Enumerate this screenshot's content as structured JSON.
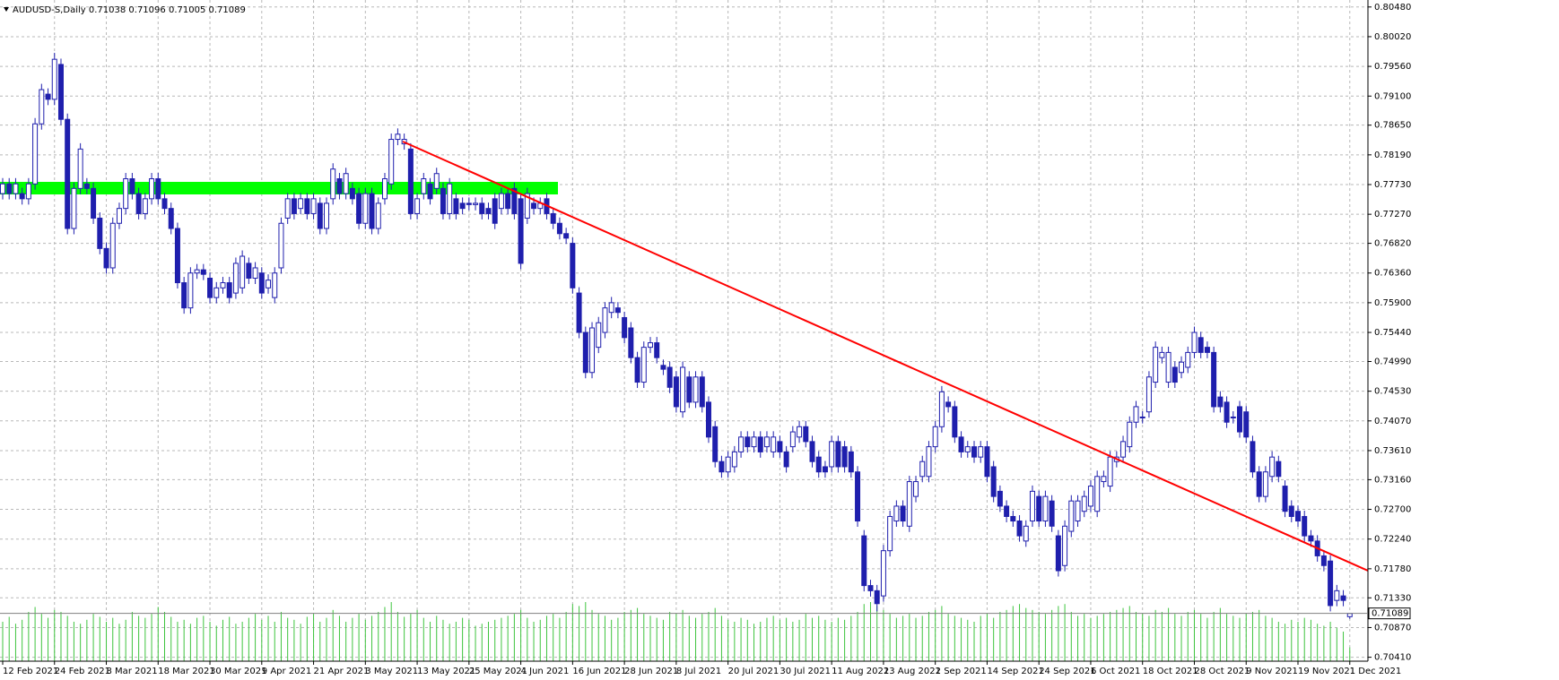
{
  "chart_data": {
    "type": "candlestick",
    "symbol": "AUDUSD-S,Daily",
    "categories": [
      "12 Feb 2021",
      null,
      null,
      null,
      null,
      null,
      null,
      null,
      "24 Feb 2021",
      null,
      null,
      null,
      null,
      null,
      null,
      null,
      "8 Mar 2021",
      null,
      null,
      null,
      null,
      null,
      null,
      null,
      "18 Mar 2021",
      null,
      null,
      null,
      null,
      null,
      null,
      null,
      "30 Mar 2021",
      null,
      null,
      null,
      null,
      null,
      null,
      null,
      "9 Apr 2021",
      null,
      null,
      null,
      null,
      null,
      null,
      null,
      "21 Apr 2021",
      null,
      null,
      null,
      null,
      null,
      null,
      null,
      "3 May 2021",
      null,
      null,
      null,
      null,
      null,
      null,
      null,
      "13 May 2021",
      null,
      null,
      null,
      null,
      null,
      null,
      null,
      "25 May 2021",
      null,
      null,
      null,
      null,
      null,
      null,
      null,
      "4 Jun 2021",
      null,
      null,
      null,
      null,
      null,
      null,
      null,
      "16 Jun 2021",
      null,
      null,
      null,
      null,
      null,
      null,
      null,
      "28 Jun 2021",
      null,
      null,
      null,
      null,
      null,
      null,
      null,
      "8 Jul 2021",
      null,
      null,
      null,
      null,
      null,
      null,
      null,
      "20 Jul 2021",
      null,
      null,
      null,
      null,
      null,
      null,
      null,
      "30 Jul 2021",
      null,
      null,
      null,
      null,
      null,
      null,
      null,
      "11 Aug 2021",
      null,
      null,
      null,
      null,
      null,
      null,
      null,
      "23 Aug 2021",
      null,
      null,
      null,
      null,
      null,
      null,
      null,
      "2 Sep 2021",
      null,
      null,
      null,
      null,
      null,
      null,
      null,
      "14 Sep 2021",
      null,
      null,
      null,
      null,
      null,
      null,
      null,
      "24 Sep 2021",
      null,
      null,
      null,
      null,
      null,
      null,
      null,
      "6 Oct 2021",
      null,
      null,
      null,
      null,
      null,
      null,
      null,
      "18 Oct 2021",
      null,
      null,
      null,
      null,
      null,
      null,
      null,
      "28 Oct 2021",
      null,
      null,
      null,
      null,
      null,
      null,
      null,
      "9 Nov 2021",
      null,
      null,
      null,
      null,
      null,
      null,
      null,
      "19 Nov 2021",
      null,
      null,
      null,
      null,
      null,
      null,
      null,
      "1 Dec 2021"
    ],
    "open": [
      0.7759,
      0.7774,
      0.7759,
      0.7759,
      0.7751,
      0.7774,
      0.7867,
      0.7913,
      0.7905,
      0.7959,
      0.7874,
      0.7705,
      0.7767,
      0.7774,
      0.7767,
      0.7721,
      0.7674,
      0.7644,
      0.7713,
      0.7736,
      0.7782,
      0.7759,
      0.7728,
      0.7751,
      0.7782,
      0.7751,
      0.7736,
      0.7705,
      0.7621,
      0.7582,
      0.7636,
      0.7641,
      0.7628,
      0.7598,
      0.7613,
      0.7621,
      0.7605,
      0.7613,
      0.7651,
      0.7628,
      0.7636,
      0.7613,
      0.7598,
      0.7644,
      0.7721,
      0.7751,
      0.7736,
      0.7751,
      0.7728,
      0.7744,
      0.7705,
      0.7751,
      0.7782,
      0.7759,
      0.7767,
      0.7759,
      0.7713,
      0.7759,
      0.7705,
      0.7751,
      0.7774,
      0.7843,
      0.7836,
      0.7828,
      0.7728,
      0.7759,
      0.7774,
      0.7767,
      0.7767,
      0.7728,
      0.7751,
      0.7744,
      0.7744,
      0.7742,
      0.7744,
      0.7736,
      0.7751,
      0.7736,
      0.7759,
      0.7767,
      0.7751,
      0.7721,
      0.7744,
      0.7736,
      0.7751,
      0.7728,
      0.7713,
      0.7697,
      0.7682,
      0.7605,
      0.7544,
      0.7482,
      0.7521,
      0.7544,
      0.7575,
      0.7582,
      0.7567,
      0.7551,
      0.7505,
      0.7467,
      0.7521,
      0.7528,
      0.7493,
      0.749,
      0.7475,
      0.7421,
      0.7475,
      0.7436,
      0.7475,
      0.7436,
      0.7398,
      0.7344,
      0.7328,
      0.7336,
      0.7359,
      0.7382,
      0.7367,
      0.7382,
      0.7367,
      0.7359,
      0.7375,
      0.7359,
      0.7367,
      0.7382,
      0.7398,
      0.7375,
      0.7351,
      0.7336,
      0.7336,
      0.7375,
      0.7367,
      0.7359,
      0.7328,
      0.7229,
      0.7152,
      0.7144,
      0.7136,
      0.7206,
      0.7252,
      0.7275,
      0.7244,
      0.729,
      0.7321,
      0.7321,
      0.7367,
      0.7398,
      0.7436,
      0.7429,
      0.7382,
      0.7359,
      0.7367,
      0.7351,
      0.7367,
      0.7336,
      0.7298,
      0.7275,
      0.7259,
      0.7252,
      0.7221,
      0.7252,
      0.729,
      0.7252,
      0.7283,
      0.7229,
      0.7183,
      0.7236,
      0.7252,
      0.7267,
      0.7275,
      0.7267,
      0.7313,
      0.7306,
      0.7344,
      0.7351,
      0.7367,
      0.7405,
      0.7413,
      0.7421,
      0.7467,
      0.7505,
      0.7467,
      0.749,
      0.7482,
      0.749,
      0.7513,
      0.7536,
      0.7521,
      0.7513,
      0.7444,
      0.7436,
      0.7413,
      0.7429,
      0.7421,
      0.7375,
      0.7328,
      0.729,
      0.7321,
      0.7344,
      0.7306,
      0.7275,
      0.7267,
      0.7259,
      0.7229,
      0.7221,
      0.7198,
      0.719,
      0.7129,
      0.7136,
      0.71038
    ],
    "high": [
      0.7783,
      0.7783,
      0.7783,
      0.7768,
      0.7783,
      0.7876,
      0.7929,
      0.7922,
      0.7977,
      0.7968,
      0.7883,
      0.7776,
      0.7837,
      0.7783,
      0.7776,
      0.773,
      0.7683,
      0.7722,
      0.7745,
      0.7791,
      0.7791,
      0.7768,
      0.776,
      0.7791,
      0.7791,
      0.776,
      0.7745,
      0.7714,
      0.763,
      0.7645,
      0.765,
      0.765,
      0.7637,
      0.7622,
      0.763,
      0.763,
      0.766,
      0.7671,
      0.766,
      0.7653,
      0.7645,
      0.7634,
      0.7645,
      0.7722,
      0.776,
      0.776,
      0.776,
      0.776,
      0.776,
      0.7753,
      0.7753,
      0.7806,
      0.7791,
      0.7799,
      0.7776,
      0.7768,
      0.7768,
      0.7768,
      0.7753,
      0.7791,
      0.7852,
      0.786,
      0.7852,
      0.7837,
      0.776,
      0.7791,
      0.7783,
      0.7799,
      0.7776,
      0.7783,
      0.776,
      0.7753,
      0.7753,
      0.7753,
      0.7753,
      0.7745,
      0.776,
      0.7768,
      0.7768,
      0.7776,
      0.776,
      0.7768,
      0.7753,
      0.7753,
      0.776,
      0.7737,
      0.7722,
      0.7706,
      0.7691,
      0.7614,
      0.7553,
      0.756,
      0.7568,
      0.7591,
      0.7599,
      0.7591,
      0.7576,
      0.756,
      0.7514,
      0.753,
      0.7537,
      0.7537,
      0.7502,
      0.7499,
      0.7484,
      0.7499,
      0.7484,
      0.7484,
      0.7484,
      0.7445,
      0.7407,
      0.7353,
      0.736,
      0.7368,
      0.7391,
      0.7391,
      0.7391,
      0.7391,
      0.7391,
      0.7391,
      0.7384,
      0.7368,
      0.7399,
      0.7407,
      0.7407,
      0.7384,
      0.736,
      0.7345,
      0.7384,
      0.7384,
      0.7376,
      0.7368,
      0.7337,
      0.7238,
      0.7161,
      0.7153,
      0.7215,
      0.7268,
      0.7284,
      0.7284,
      0.7322,
      0.7322,
      0.7353,
      0.7376,
      0.7407,
      0.7461,
      0.7445,
      0.7438,
      0.7391,
      0.7376,
      0.7376,
      0.7376,
      0.7376,
      0.7345,
      0.7307,
      0.7284,
      0.7268,
      0.7261,
      0.7253,
      0.7307,
      0.7299,
      0.7299,
      0.7292,
      0.7238,
      0.7253,
      0.7292,
      0.7292,
      0.7299,
      0.7315,
      0.733,
      0.733,
      0.736,
      0.736,
      0.7384,
      0.7414,
      0.7438,
      0.7422,
      0.7484,
      0.753,
      0.7522,
      0.7522,
      0.7499,
      0.7507,
      0.7522,
      0.7553,
      0.7545,
      0.753,
      0.7522,
      0.7453,
      0.7445,
      0.7422,
      0.7438,
      0.743,
      0.7384,
      0.7337,
      0.7337,
      0.736,
      0.7353,
      0.7315,
      0.7284,
      0.7276,
      0.7268,
      0.7238,
      0.723,
      0.7207,
      0.7199,
      0.7153,
      0.7145,
      0.71096
    ],
    "low": [
      0.775,
      0.775,
      0.775,
      0.7742,
      0.7742,
      0.7765,
      0.7858,
      0.7896,
      0.7896,
      0.7865,
      0.7696,
      0.7696,
      0.7758,
      0.7758,
      0.7712,
      0.7665,
      0.7635,
      0.7635,
      0.7704,
      0.7727,
      0.775,
      0.7719,
      0.7719,
      0.7742,
      0.7742,
      0.7727,
      0.7696,
      0.7612,
      0.7573,
      0.7573,
      0.7627,
      0.7625,
      0.7589,
      0.7589,
      0.7604,
      0.7589,
      0.7596,
      0.7604,
      0.7619,
      0.7619,
      0.7596,
      0.7604,
      0.7589,
      0.7635,
      0.7712,
      0.7719,
      0.7727,
      0.7719,
      0.7719,
      0.7696,
      0.7696,
      0.7742,
      0.775,
      0.775,
      0.7742,
      0.7704,
      0.7704,
      0.7696,
      0.7696,
      0.7742,
      0.7765,
      0.7834,
      0.7827,
      0.7719,
      0.7719,
      0.775,
      0.7742,
      0.7758,
      0.7719,
      0.7719,
      0.7719,
      0.7727,
      0.7733,
      0.7733,
      0.7719,
      0.7719,
      0.7704,
      0.7727,
      0.7727,
      0.7719,
      0.7642,
      0.7712,
      0.7727,
      0.7727,
      0.7719,
      0.7704,
      0.7688,
      0.7681,
      0.7604,
      0.7535,
      0.7473,
      0.7473,
      0.7512,
      0.7535,
      0.7566,
      0.7566,
      0.7527,
      0.7496,
      0.7458,
      0.7458,
      0.7512,
      0.7496,
      0.7478,
      0.745,
      0.742,
      0.7412,
      0.7427,
      0.7427,
      0.742,
      0.7373,
      0.7335,
      0.7319,
      0.7319,
      0.7327,
      0.735,
      0.7358,
      0.7358,
      0.735,
      0.7358,
      0.735,
      0.735,
      0.7327,
      0.7358,
      0.7373,
      0.7366,
      0.7335,
      0.7319,
      0.7319,
      0.7327,
      0.7327,
      0.7327,
      0.7319,
      0.7243,
      0.7143,
      0.7135,
      0.7112,
      0.7127,
      0.7197,
      0.7243,
      0.7243,
      0.7235,
      0.7281,
      0.7312,
      0.7312,
      0.7358,
      0.7389,
      0.742,
      0.7373,
      0.735,
      0.735,
      0.7342,
      0.7342,
      0.7312,
      0.7281,
      0.7266,
      0.725,
      0.7243,
      0.722,
      0.7212,
      0.7243,
      0.7243,
      0.7243,
      0.7235,
      0.7166,
      0.7174,
      0.7227,
      0.7243,
      0.7258,
      0.7266,
      0.7258,
      0.7304,
      0.7297,
      0.7335,
      0.7342,
      0.7358,
      0.7396,
      0.7403,
      0.7412,
      0.7458,
      0.7496,
      0.7458,
      0.7458,
      0.7473,
      0.7481,
      0.7504,
      0.7504,
      0.7504,
      0.742,
      0.742,
      0.7396,
      0.7403,
      0.7381,
      0.7373,
      0.7319,
      0.7281,
      0.7281,
      0.7312,
      0.7312,
      0.7258,
      0.725,
      0.7243,
      0.722,
      0.7212,
      0.7189,
      0.7174,
      0.7112,
      0.712,
      0.712,
      0.71005
    ],
    "close": [
      0.7774,
      0.7759,
      0.7774,
      0.7751,
      0.7774,
      0.7867,
      0.792,
      0.7905,
      0.7967,
      0.7874,
      0.7705,
      0.7767,
      0.7828,
      0.7767,
      0.7721,
      0.7674,
      0.7644,
      0.7713,
      0.7736,
      0.7782,
      0.7759,
      0.7728,
      0.7751,
      0.7782,
      0.7751,
      0.7736,
      0.7705,
      0.7621,
      0.7582,
      0.7636,
      0.7641,
      0.7634,
      0.7598,
      0.7613,
      0.7621,
      0.7598,
      0.7651,
      0.7662,
      0.7628,
      0.7644,
      0.7605,
      0.7625,
      0.7636,
      0.7713,
      0.7751,
      0.7728,
      0.7751,
      0.7728,
      0.7751,
      0.7705,
      0.7744,
      0.7797,
      0.7759,
      0.779,
      0.7751,
      0.7713,
      0.7759,
      0.7705,
      0.7744,
      0.7782,
      0.7843,
      0.7851,
      0.7843,
      0.7728,
      0.7751,
      0.7782,
      0.7751,
      0.779,
      0.7728,
      0.7774,
      0.7728,
      0.7736,
      0.7742,
      0.7744,
      0.7728,
      0.7728,
      0.7713,
      0.7759,
      0.7736,
      0.7728,
      0.7651,
      0.7759,
      0.7736,
      0.7744,
      0.7728,
      0.7713,
      0.7697,
      0.769,
      0.7613,
      0.7544,
      0.7482,
      0.7551,
      0.7559,
      0.7582,
      0.759,
      0.7575,
      0.7536,
      0.7505,
      0.7467,
      0.7521,
      0.7528,
      0.7505,
      0.7487,
      0.7459,
      0.7429,
      0.749,
      0.7436,
      0.7475,
      0.7429,
      0.7382,
      0.7344,
      0.7328,
      0.7351,
      0.7359,
      0.7382,
      0.7367,
      0.7382,
      0.7359,
      0.7382,
      0.7382,
      0.7359,
      0.7336,
      0.739,
      0.7398,
      0.7375,
      0.7344,
      0.7328,
      0.7328,
      0.7375,
      0.7336,
      0.7336,
      0.7328,
      0.7252,
      0.7152,
      0.7144,
      0.7124,
      0.7206,
      0.7259,
      0.7275,
      0.7252,
      0.7313,
      0.7313,
      0.7344,
      0.7367,
      0.7398,
      0.7452,
      0.7429,
      0.7382,
      0.7359,
      0.7367,
      0.7351,
      0.7367,
      0.7321,
      0.729,
      0.7275,
      0.7259,
      0.7252,
      0.7229,
      0.7244,
      0.7298,
      0.7252,
      0.729,
      0.7244,
      0.7175,
      0.7244,
      0.7283,
      0.7283,
      0.729,
      0.7306,
      0.7321,
      0.7321,
      0.7351,
      0.7351,
      0.7375,
      0.7405,
      0.7429,
      0.7412,
      0.7475,
      0.7521,
      0.7513,
      0.7513,
      0.7467,
      0.7498,
      0.7513,
      0.7544,
      0.7513,
      0.7513,
      0.7429,
      0.7429,
      0.7405,
      0.7412,
      0.739,
      0.7382,
      0.7328,
      0.729,
      0.7328,
      0.7351,
      0.7321,
      0.7267,
      0.7259,
      0.7252,
      0.7229,
      0.7221,
      0.7198,
      0.7183,
      0.7121,
      0.7144,
      0.7129,
      0.71089
    ],
    "volume": [
      40,
      45,
      38,
      42,
      50,
      55,
      48,
      44,
      52,
      50,
      46,
      40,
      38,
      42,
      48,
      45,
      40,
      44,
      38,
      42,
      50,
      46,
      44,
      48,
      55,
      50,
      45,
      40,
      42,
      38,
      44,
      46,
      40,
      36,
      42,
      45,
      38,
      40,
      44,
      48,
      42,
      46,
      40,
      50,
      44,
      42,
      38,
      45,
      48,
      40,
      44,
      52,
      46,
      40,
      44,
      48,
      42,
      46,
      50,
      55,
      60,
      50,
      45,
      48,
      52,
      44,
      40,
      46,
      42,
      38,
      40,
      44,
      42,
      36,
      38,
      40,
      42,
      44,
      46,
      48,
      52,
      44,
      40,
      42,
      46,
      48,
      44,
      50,
      58,
      56,
      60,
      52,
      48,
      46,
      42,
      44,
      50,
      52,
      54,
      48,
      46,
      44,
      42,
      50,
      48,
      52,
      46,
      44,
      48,
      50,
      54,
      46,
      42,
      40,
      44,
      42,
      38,
      40,
      44,
      46,
      42,
      44,
      40,
      42,
      48,
      44,
      46,
      42,
      40,
      44,
      42,
      46,
      50,
      58,
      60,
      56,
      52,
      48,
      44,
      46,
      48,
      44,
      46,
      50,
      52,
      56,
      48,
      46,
      44,
      42,
      40,
      46,
      48,
      44,
      50,
      52,
      56,
      58,
      54,
      52,
      50,
      48,
      52,
      56,
      58,
      50,
      46,
      48,
      44,
      46,
      48,
      50,
      52,
      54,
      56,
      50,
      48,
      46,
      52,
      50,
      54,
      48,
      46,
      50,
      52,
      48,
      44,
      50,
      54,
      48,
      46,
      44,
      48,
      50,
      52,
      46,
      44,
      40,
      38,
      42,
      40,
      44,
      42,
      38,
      36,
      40,
      34,
      30,
      14
    ],
    "ylim": [
      0.70349,
      0.80588
    ],
    "yticks": [
      {
        "value": 0.8048,
        "label": "0.80480"
      },
      {
        "value": 0.8002,
        "label": "0.80020"
      },
      {
        "value": 0.7956,
        "label": "0.79560"
      },
      {
        "value": 0.791,
        "label": "0.79100"
      },
      {
        "value": 0.7865,
        "label": "0.78650"
      },
      {
        "value": 0.7819,
        "label": "0.78190"
      },
      {
        "value": 0.7773,
        "label": "0.77730"
      },
      {
        "value": 0.7727,
        "label": "0.77270"
      },
      {
        "value": 0.7682,
        "label": "0.76820"
      },
      {
        "value": 0.7636,
        "label": "0.76360"
      },
      {
        "value": 0.759,
        "label": "0.75900"
      },
      {
        "value": 0.7544,
        "label": "0.75440"
      },
      {
        "value": 0.7499,
        "label": "0.74990"
      },
      {
        "value": 0.7453,
        "label": "0.74530"
      },
      {
        "value": 0.7407,
        "label": "0.74070"
      },
      {
        "value": 0.7361,
        "label": "0.73610"
      },
      {
        "value": 0.7316,
        "label": "0.73160"
      },
      {
        "value": 0.727,
        "label": "0.72700"
      },
      {
        "value": 0.7224,
        "label": "0.72240"
      },
      {
        "value": 0.7178,
        "label": "0.71780"
      },
      {
        "value": 0.7133,
        "label": "0.71330"
      },
      {
        "value": 0.7087,
        "label": "0.70870"
      },
      {
        "value": 0.7041,
        "label": "0.70410"
      }
    ],
    "grid": true,
    "up_color": "#ffffff",
    "down_color": "#1f1fad",
    "wick_color": "#1f1fad",
    "volume_color": "#3ec43e"
  }
}
